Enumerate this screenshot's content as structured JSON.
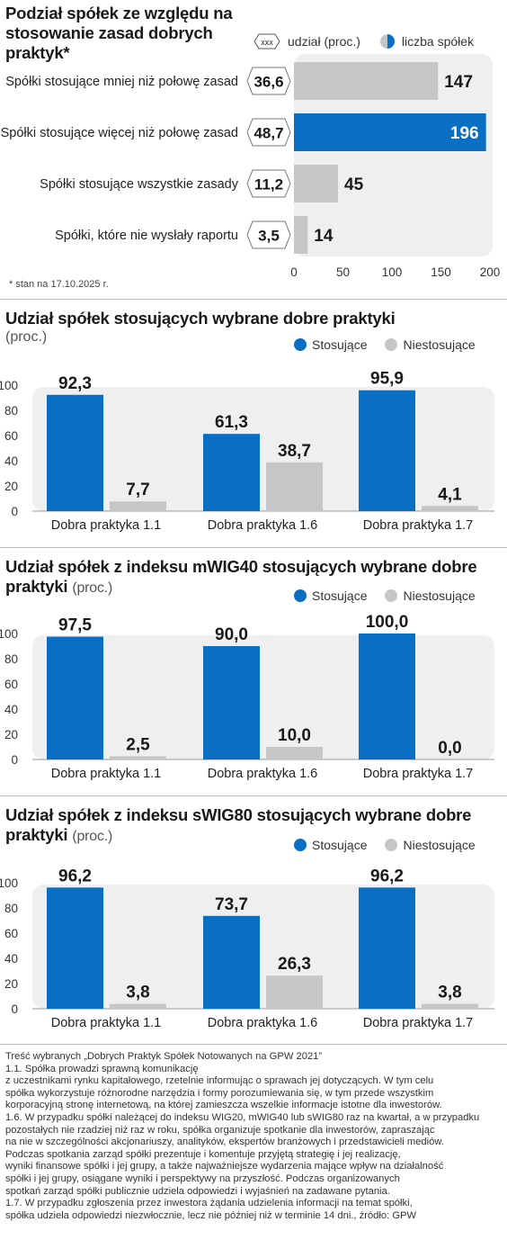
{
  "colors": {
    "blue": "#0a6fc2",
    "gray": "#c6c6c8",
    "panel": "#efeff0"
  },
  "chart_data": [
    {
      "type": "bar",
      "orientation": "horizontal",
      "title": "Podział spółek ze względu na stosowanie zasad dobrych praktyk*",
      "legend": {
        "share_marker": "xxx",
        "share_label": "udział (proc.)",
        "count_label": "liczba spółek"
      },
      "categories": [
        "Spółki stosujące mniej niż połowę zasad",
        "Spółki stosujące więcej niż połowę zasad",
        "Spółki stosujące wszystkie zasady",
        "Spółki, które nie wysłały raportu"
      ],
      "share_labels": [
        "36,6",
        "48,7",
        "11,2",
        "3,5"
      ],
      "values": [
        147,
        196,
        45,
        14
      ],
      "value_labels": [
        "147",
        "196",
        "45",
        "14"
      ],
      "highlight_index": 1,
      "xlim": [
        0,
        200
      ],
      "xticks": [
        "0",
        "50",
        "100",
        "150",
        "200"
      ],
      "footnote": "* stan na 17.10.2025 r."
    },
    {
      "type": "bar",
      "title": "Udział spółek stosujących wybrane dobre praktyki",
      "unit": "(proc.)",
      "categories": [
        "Dobra praktyka 1.1",
        "Dobra praktyka 1.6",
        "Dobra praktyka 1.7"
      ],
      "series": [
        {
          "name": "Stosujące",
          "values": [
            92.3,
            61.3,
            95.9
          ],
          "labels": [
            "92,3",
            "61,3",
            "95,9"
          ]
        },
        {
          "name": "Niestosujące",
          "values": [
            7.7,
            38.7,
            4.1
          ],
          "labels": [
            "7,7",
            "38,7",
            "4,1"
          ]
        }
      ],
      "ylim": [
        0,
        100
      ],
      "yticks": [
        "0",
        "20",
        "40",
        "60",
        "80",
        "100"
      ]
    },
    {
      "type": "bar",
      "title": "Udział spółek z indeksu mWIG40 stosujących wybrane dobre praktyki",
      "unit": "(proc.)",
      "categories": [
        "Dobra praktyka 1.1",
        "Dobra praktyka 1.6",
        "Dobra praktyka 1.7"
      ],
      "series": [
        {
          "name": "Stosujące",
          "values": [
            97.5,
            90.0,
            100.0
          ],
          "labels": [
            "97,5",
            "90,0",
            "100,0"
          ]
        },
        {
          "name": "Niestosujące",
          "values": [
            2.5,
            10.0,
            0.0
          ],
          "labels": [
            "2,5",
            "10,0",
            "0,0"
          ]
        }
      ],
      "ylim": [
        0,
        100
      ],
      "yticks": [
        "0",
        "20",
        "40",
        "60",
        "80",
        "100"
      ]
    },
    {
      "type": "bar",
      "title": "Udział spółek z indeksu sWIG80 stosujących wybrane dobre praktyki",
      "unit": "(proc.)",
      "categories": [
        "Dobra praktyka 1.1",
        "Dobra praktyka 1.6",
        "Dobra praktyka 1.7"
      ],
      "series": [
        {
          "name": "Stosujące",
          "values": [
            96.2,
            73.7,
            96.2
          ],
          "labels": [
            "96,2",
            "73,7",
            "96,2"
          ]
        },
        {
          "name": "Niestosujące",
          "values": [
            3.8,
            26.3,
            3.8
          ],
          "labels": [
            "3,8",
            "26,3",
            "3,8"
          ]
        }
      ],
      "ylim": [
        0,
        100
      ],
      "yticks": [
        "0",
        "20",
        "40",
        "60",
        "80",
        "100"
      ]
    }
  ],
  "footer_lines": [
    "Treść wybranych „Dobrych Praktyk Spółek Notowanych na GPW 2021”",
    "1.1. Spółka prowadzi sprawną komunikację",
    "z uczestnikami rynku kapitałowego, rzetelnie informując o sprawach jej dotyczących. W tym celu",
    "spółka wykorzystuje różnorodne narzędzia i formy porozumiewania się, w tym przede wszystkim",
    "korporacyjną stronę internetową, na której zamieszcza wszelkie informacje istotne dla inwestorów.",
    "1.6. W przypadku spółki należącej do indeksu WIG20, mWIG40 lub sWIG80 raz na kwartał, a w przypadku",
    "pozostałych nie rzadziej niż raz w roku, spółka organizuje spotkanie dla inwestorów, zapraszając",
    "na nie w szczególności akcjonariuszy, analityków, ekspertów branżowych i przedstawicieli mediów.",
    "Podczas spotkania zarząd spółki prezentuje i komentuje przyjętą strategię i jej realizację,",
    "wyniki finansowe spółki i jej grupy, a także najważniejsze wydarzenia mające wpływ na działalność",
    "spółki i jej grupy, osiągane wyniki i perspektywy na przyszłość. Podczas organizowanych",
    "spotkań zarząd spółki publicznie udziela odpowiedzi i wyjaśnień na zadawane pytania.",
    "1.7. W przypadku zgłoszenia przez inwestora żądania udzielenia informacji  na temat spółki,",
    "spółka udziela odpowiedzi niezwłocznie, lecz nie później niż w terminie 14 dni., źródło: GPW"
  ]
}
